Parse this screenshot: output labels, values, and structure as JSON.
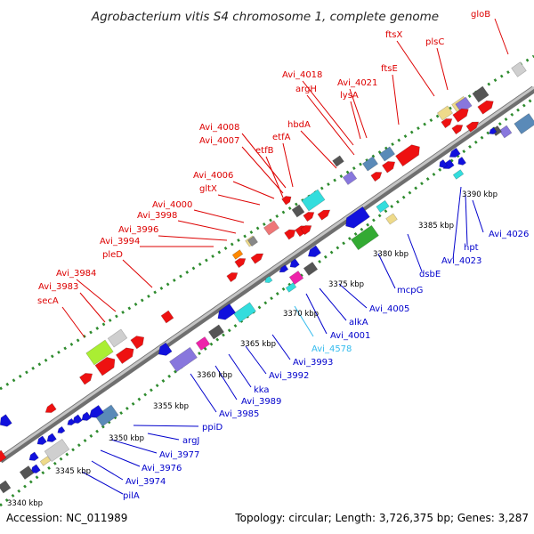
{
  "title": "Agrobacterium vitis S4 chromosome 1, complete genome",
  "footer": {
    "accession": "Accession: NC_011989",
    "info": "Topology: circular; Length: 3,726,375 bp; Genes: 3,287"
  },
  "colors": {
    "forward_label": "#dd0000",
    "reverse_label": "#0000cc",
    "rna_label": "#33bbee",
    "backbone": "#9a9a9a",
    "ticks": "#2e8b2e"
  },
  "kbp_ticks": [
    "3340 kbp",
    "3345 kbp",
    "3350 kbp",
    "3355 kbp",
    "3360 kbp",
    "3365 kbp",
    "3370 kbp",
    "3375 kbp",
    "3380 kbp",
    "3385 kbp",
    "3390 kbp"
  ],
  "forward_labels": [
    "gloB",
    "ftsX",
    "plsC",
    "ftsE",
    "Avi_4018",
    "argH",
    "Avi_4021",
    "lysA",
    "hbdA",
    "Avi_4008",
    "Avi_4007",
    "etfA",
    "etfB",
    "Avi_4006",
    "gltX",
    "Avi_4000",
    "Avi_3998",
    "Avi_3996",
    "Avi_3994",
    "pleD",
    "Avi_3984",
    "Avi_3983",
    "secA"
  ],
  "reverse_labels": [
    "Avi_4026",
    "hpt",
    "Avi_4023",
    "dsbE",
    "mcpG",
    "Avi_4005",
    "alkA",
    "Avi_4001",
    "Avi_4578",
    "Avi_3993",
    "Avi_3992",
    "kka",
    "Avi_3989",
    "Avi_3985",
    "ppiD",
    "argJ",
    "Avi_3977",
    "Avi_3976",
    "Avi_3974",
    "pilA"
  ]
}
